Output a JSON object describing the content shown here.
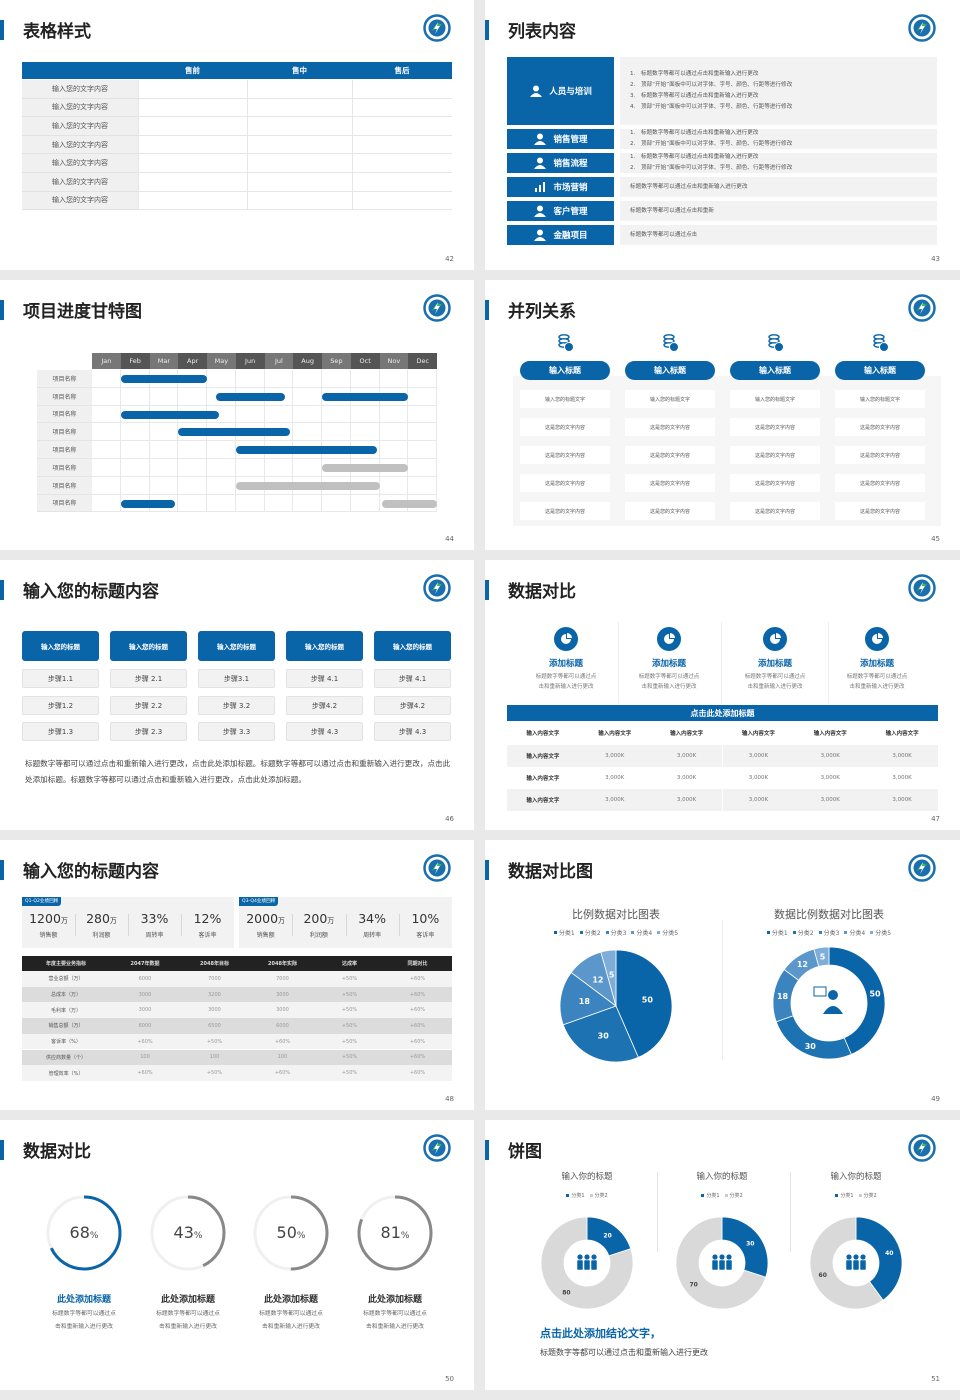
{
  "colors": {
    "primary": "#0a64a8",
    "gray": "#c0c0c0",
    "light": "#f2f2f2",
    "dark": "#222222"
  },
  "s42": {
    "title": "表格样式",
    "page": "42",
    "headers": [
      "",
      "售前",
      "售中",
      "售后"
    ],
    "rows": [
      "输入您的文字内容",
      "输入您的文字内容",
      "输入您的文字内容",
      "输入您的文字内容",
      "输入您的文字内容",
      "输入您的文字内容",
      "输入您的文字内容"
    ]
  },
  "s43": {
    "title": "列表内容",
    "page": "43",
    "items": [
      {
        "label": "人员与培训",
        "icon": "people-training-icon",
        "lines": [
          "1.　标题数字等都可以通过点击和重新输入进行更改",
          "2.　顶部“开始”面板中可以对字体、字号、颜色、行距等进行修改",
          "3.　标题数字等都可以通过点击和重新输入进行更改",
          "4.　顶部“开始”面板中可以对字体、字号、颜色、行距等进行修改"
        ]
      },
      {
        "label": "销售管理",
        "icon": "user-gear-icon",
        "lines": [
          "1.　标题数字等都可以通过点击和重新输入进行更改",
          "2.　顶部“开始”面板中可以对字体、字号、颜色、行距等进行修改"
        ]
      },
      {
        "label": "销售流程",
        "icon": "shield-icon",
        "lines": [
          "1.　标题数字等都可以通过点击和重新输入进行更改",
          "2.　顶部“开始”面板中可以对字体、字号、颜色、行距等进行修改"
        ]
      },
      {
        "label": "市场营销",
        "icon": "bar-chart-icon",
        "lines": [
          "标题数字等都可以通过点击和重新输入进行更改"
        ]
      },
      {
        "label": "客户管理",
        "icon": "group-icon",
        "lines": [
          "标题数字等都可以通过点击和重新"
        ]
      },
      {
        "label": "金融项目",
        "icon": "finance-hand-icon",
        "lines": [
          "标题数字等都可以通过点击"
        ]
      }
    ]
  },
  "s44": {
    "title": "项目进度甘特图",
    "page": "44",
    "months": [
      "Jan",
      "Feb",
      "Mar",
      "Apr",
      "May",
      "Jun",
      "Jul",
      "Aug",
      "Sep",
      "Oct",
      "Nov",
      "Dec"
    ],
    "rows": [
      {
        "label": "项目名称",
        "bars": [
          {
            "start_month": 1,
            "end_month": 4,
            "status": "blue"
          }
        ]
      },
      {
        "label": "项目名称",
        "bars": [
          {
            "start_month": 4.3,
            "end_month": 6.7,
            "status": "blue"
          },
          {
            "start_month": 8,
            "end_month": 11,
            "status": "blue"
          }
        ]
      },
      {
        "label": "项目名称",
        "bars": [
          {
            "start_month": 1,
            "end_month": 4.4,
            "status": "blue"
          }
        ]
      },
      {
        "label": "项目名称",
        "bars": [
          {
            "start_month": 3,
            "end_month": 6.9,
            "status": "blue"
          }
        ]
      },
      {
        "label": "项目名称",
        "bars": [
          {
            "start_month": 5,
            "end_month": 9.9,
            "status": "blue"
          }
        ]
      },
      {
        "label": "项目名称",
        "bars": [
          {
            "start_month": 8,
            "end_month": 11,
            "status": "gray"
          }
        ]
      },
      {
        "label": "项目名称",
        "bars": [
          {
            "start_month": 5,
            "end_month": 10,
            "status": "gray"
          }
        ]
      },
      {
        "label": "项目名称",
        "bars": [
          {
            "start_month": 1,
            "end_month": 2.9,
            "status": "blue"
          },
          {
            "start_month": 10.1,
            "end_month": 12,
            "status": "gray"
          }
        ]
      }
    ]
  },
  "s45": {
    "title": "并列关系",
    "page": "45",
    "columns": [
      {
        "title": "输入标题",
        "icon": "coins-icon",
        "cells": [
          "输入您的标题文字",
          "这是您的文字内容",
          "这是您的文字内容",
          "这是您的文字内容",
          "这是您的文字内容"
        ]
      },
      {
        "title": "输入标题",
        "icon": "coins-icon",
        "cells": [
          "输入您的标题文字",
          "这是您的文字内容",
          "这是您的文字内容",
          "这是您的文字内容",
          "这是您的文字内容"
        ]
      },
      {
        "title": "输入标题",
        "icon": "coins-icon",
        "cells": [
          "输入您的标题文字",
          "这是您的文字内容",
          "这是您的文字内容",
          "这是您的文字内容",
          "这是您的文字内容"
        ]
      },
      {
        "title": "输入标题",
        "icon": "coins-icon",
        "cells": [
          "输入您的标题文字",
          "这是您的文字内容",
          "这是您的文字内容",
          "这是您的文字内容",
          "这是您的文字内容"
        ]
      }
    ]
  },
  "s46": {
    "title": "输入您的标题内容",
    "page": "46",
    "columns": [
      {
        "title": "输入您的标题",
        "steps": [
          "步骤1.1",
          "步骤1.2",
          "步骤1.3"
        ]
      },
      {
        "title": "输入您的标题",
        "steps": [
          "步骤 2.1",
          "步骤 2.2",
          "步骤 2.3"
        ]
      },
      {
        "title": "输入您的标题",
        "steps": [
          "步骤3.1",
          "步骤 3.2",
          "步骤 3.3"
        ]
      },
      {
        "title": "输入您的标题",
        "steps": [
          "步骤 4.1",
          "步骤4.2",
          "步骤 4.3"
        ]
      },
      {
        "title": "输入您的标题",
        "steps": [
          "步骤 4.1",
          "步骤4.2",
          "步骤 4.3"
        ]
      }
    ],
    "paragraph": "标题数字等都可以通过点击和重新输入进行更改，点击此处添加标题。标题数字等都可以通过点击和重新输入进行更改，点击此处添加标题。标题数字等都可以通过点击和重新输入进行更改，点击此处添加标题。"
  },
  "s47": {
    "title": "数据对比",
    "page": "47",
    "features": [
      {
        "title": "添加标题",
        "desc1": "标题数字等都可以通过点",
        "desc2": "击和重新输入进行更改"
      },
      {
        "title": "添加标题",
        "desc1": "标题数字等都可以通过点",
        "desc2": "击和重新输入进行更改"
      },
      {
        "title": "添加标题",
        "desc1": "标题数字等都可以通过点",
        "desc2": "击和重新输入进行更改"
      },
      {
        "title": "添加标题",
        "desc1": "标题数字等都可以通过点",
        "desc2": "击和重新输入进行更改"
      }
    ],
    "bar_title": "点击此处添加标题",
    "header": [
      "输入内容文字",
      "输入内容文字",
      "输入内容文字",
      "输入内容文字",
      "输入内容文字",
      "输入内容文字"
    ],
    "rows": [
      [
        "输入内容文字",
        "3,000K",
        "3,000K",
        "3,000K",
        "3,000K",
        "3,000K"
      ],
      [
        "输入内容文字",
        "3,000K",
        "3,000K",
        "3,000K",
        "3,000K",
        "3,000K"
      ],
      [
        "输入内容文字",
        "3,000K",
        "3,000K",
        "3,000K",
        "3,000K",
        "3,000K"
      ]
    ]
  },
  "s48": {
    "title": "输入您的标题内容",
    "page": "48",
    "cards": [
      {
        "tag": "Q1-Q2业绩回顾",
        "stats": [
          {
            "value": "1200",
            "unit": "万",
            "label": "销售额"
          },
          {
            "value": "280",
            "unit": "万",
            "label": "利润额"
          },
          {
            "value": "33%",
            "unit": "",
            "label": "周转率"
          },
          {
            "value": "12%",
            "unit": "",
            "label": "客诉率"
          }
        ]
      },
      {
        "tag": "Q3-Q4业绩回顾",
        "stats": [
          {
            "value": "2000",
            "unit": "万",
            "label": "销售额"
          },
          {
            "value": "200",
            "unit": "万",
            "label": "利润额"
          },
          {
            "value": "34%",
            "unit": "",
            "label": "周转率"
          },
          {
            "value": "10%",
            "unit": "",
            "label": "客诉率"
          }
        ]
      }
    ],
    "headers": [
      "年度主要业务指标",
      "2047年数据",
      "2048年目标",
      "2048年实际",
      "达成率",
      "同期对比"
    ],
    "rows": [
      [
        "营业总额（万）",
        "6000",
        "7000",
        "7000",
        "+50%",
        "+60%"
      ],
      [
        "总成本（万）",
        "3000",
        "3200",
        "3000",
        "+50%",
        "+60%"
      ],
      [
        "毛利率（万）",
        "3000",
        "3000",
        "3000",
        "+50%",
        "+60%"
      ],
      [
        "销售总额（万）",
        "6000",
        "6500",
        "6000",
        "+50%",
        "+60%"
      ],
      [
        "客诉率（%）",
        "+60%",
        "+50%",
        "+60%",
        "+50%",
        "+60%"
      ],
      [
        "供应商数量（个）",
        "100",
        "100",
        "100",
        "+50%",
        "+60%"
      ],
      [
        "管理效率（%）",
        "+60%",
        "+50%",
        "+60%",
        "+50%",
        "+60%"
      ]
    ]
  },
  "s49": {
    "title": "数据对比图",
    "page": "49"
  },
  "s50": {
    "title": "数据对比",
    "page": "50",
    "items": [
      {
        "percent": 68,
        "value": "68",
        "unit": "%",
        "title": "此处添加标题",
        "desc1": "标题数字等都可以通过点",
        "desc2": "击和重新输入进行更改",
        "highlight": true
      },
      {
        "percent": 43,
        "value": "43",
        "unit": "%",
        "title": "此处添加标题",
        "desc1": "标题数字等都可以通过点",
        "desc2": "击和重新输入进行更改",
        "highlight": false
      },
      {
        "percent": 50,
        "value": "50",
        "unit": "%",
        "title": "此处添加标题",
        "desc1": "标题数字等都可以通过点",
        "desc2": "击和重新输入进行更改",
        "highlight": false
      },
      {
        "percent": 81,
        "value": "81",
        "unit": "%",
        "title": "此处添加标题",
        "desc1": "标题数字等都可以通过点",
        "desc2": "击和重新输入进行更改",
        "highlight": false
      }
    ]
  },
  "s51": {
    "title": "饼图",
    "page": "51",
    "conclusion": "点击此处添加结论文字，",
    "conclusion_text": "标题数字等都可以通过点击和重新输入进行更改"
  },
  "chart_data": [
    {
      "type": "pie",
      "title": "比例数据对比图表",
      "categories": [
        "分类1",
        "分类2",
        "分类3",
        "分类4",
        "分类5"
      ],
      "values": [
        50,
        30,
        18,
        12,
        5
      ],
      "legend": "top",
      "colors": [
        "#0a64a8",
        "#1d72b2",
        "#3b84bf",
        "#5b97cb",
        "#7eaed8"
      ]
    },
    {
      "type": "pie",
      "donut": true,
      "title": "数据比例数据对比图表",
      "categories": [
        "分类1",
        "分类2",
        "分类3",
        "分类4",
        "分类5"
      ],
      "values": [
        50,
        30,
        18,
        12,
        5
      ],
      "legend": "top",
      "colors": [
        "#0a64a8",
        "#1d72b2",
        "#3b84bf",
        "#5b97cb",
        "#7eaed8"
      ]
    },
    {
      "type": "pie",
      "donut": true,
      "title": "输入你的标题",
      "categories": [
        "分类1",
        "分类2"
      ],
      "values": [
        20,
        80
      ],
      "legend": "top",
      "colors": [
        "#0a64a8",
        "#d9d9d9"
      ]
    },
    {
      "type": "pie",
      "donut": true,
      "title": "输入你的标题",
      "categories": [
        "分类1",
        "分类2"
      ],
      "values": [
        30,
        70
      ],
      "legend": "top",
      "colors": [
        "#0a64a8",
        "#d9d9d9"
      ]
    },
    {
      "type": "pie",
      "donut": true,
      "title": "输入你的标题",
      "categories": [
        "分类1",
        "分类2"
      ],
      "values": [
        40,
        60
      ],
      "legend": "top",
      "colors": [
        "#0a64a8",
        "#d9d9d9"
      ]
    }
  ]
}
